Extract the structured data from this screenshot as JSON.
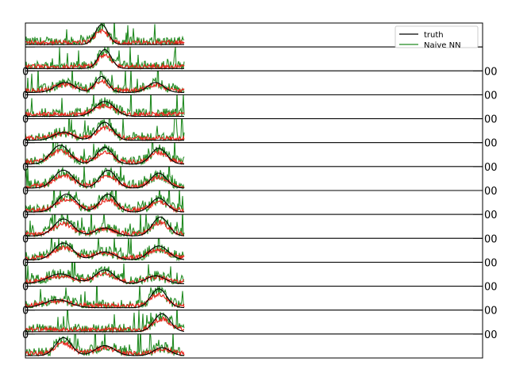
{
  "chart_data": {
    "type": "line",
    "panel_count": 14,
    "x_range": [
      0,
      100
    ],
    "legend": {
      "placement": "top-right",
      "entries": [
        {
          "label": "truth",
          "color": "#000000"
        },
        {
          "label": "Naive NN",
          "color": "#228b22"
        }
      ]
    },
    "series_colors": {
      "truth": "#000000",
      "naive_nn": "#228b22",
      "model": "#e8281e"
    },
    "ticks": {
      "left": "0",
      "right": "00"
    },
    "panels": [
      {
        "truth_peaks": [
          {
            "x": 48,
            "h": 1.0,
            "w": 4
          }
        ]
      },
      {
        "truth_peaks": [
          {
            "x": 50,
            "h": 0.95,
            "w": 4
          }
        ]
      },
      {
        "truth_peaks": [
          {
            "x": 25,
            "h": 0.5,
            "w": 6
          },
          {
            "x": 48,
            "h": 0.8,
            "w": 4
          },
          {
            "x": 82,
            "h": 0.5,
            "w": 5
          }
        ]
      },
      {
        "truth_peaks": [
          {
            "x": 50,
            "h": 0.75,
            "w": 6
          }
        ]
      },
      {
        "truth_peaks": [
          {
            "x": 24,
            "h": 0.4,
            "w": 6
          },
          {
            "x": 50,
            "h": 0.9,
            "w": 5
          }
        ]
      },
      {
        "truth_peaks": [
          {
            "x": 22,
            "h": 0.95,
            "w": 6
          },
          {
            "x": 50,
            "h": 0.85,
            "w": 5
          },
          {
            "x": 84,
            "h": 0.8,
            "w": 5
          }
        ]
      },
      {
        "truth_peaks": [
          {
            "x": 24,
            "h": 0.9,
            "w": 6
          },
          {
            "x": 52,
            "h": 0.9,
            "w": 5
          },
          {
            "x": 84,
            "h": 0.75,
            "w": 5
          }
        ]
      },
      {
        "truth_peaks": [
          {
            "x": 26,
            "h": 0.9,
            "w": 6
          },
          {
            "x": 52,
            "h": 0.9,
            "w": 5
          },
          {
            "x": 84,
            "h": 0.7,
            "w": 5
          }
        ]
      },
      {
        "truth_peaks": [
          {
            "x": 24,
            "h": 0.85,
            "w": 6
          },
          {
            "x": 50,
            "h": 0.4,
            "w": 6
          },
          {
            "x": 85,
            "h": 0.95,
            "w": 5
          }
        ]
      },
      {
        "truth_peaks": [
          {
            "x": 24,
            "h": 0.85,
            "w": 6
          },
          {
            "x": 50,
            "h": 0.4,
            "w": 6
          },
          {
            "x": 84,
            "h": 0.7,
            "w": 6
          }
        ]
      },
      {
        "truth_peaks": [
          {
            "x": 22,
            "h": 0.5,
            "w": 8
          },
          {
            "x": 50,
            "h": 0.7,
            "w": 6
          },
          {
            "x": 82,
            "h": 0.4,
            "w": 6
          }
        ]
      },
      {
        "truth_peaks": [
          {
            "x": 20,
            "h": 0.4,
            "w": 8
          },
          {
            "x": 84,
            "h": 0.95,
            "w": 5
          }
        ]
      },
      {
        "truth_peaks": [
          {
            "x": 86,
            "h": 0.9,
            "w": 5
          }
        ]
      },
      {
        "truth_peaks": [
          {
            "x": 24,
            "h": 0.9,
            "w": 5
          },
          {
            "x": 50,
            "h": 0.5,
            "w": 6
          },
          {
            "x": 86,
            "h": 0.4,
            "w": 5
          }
        ]
      }
    ]
  }
}
